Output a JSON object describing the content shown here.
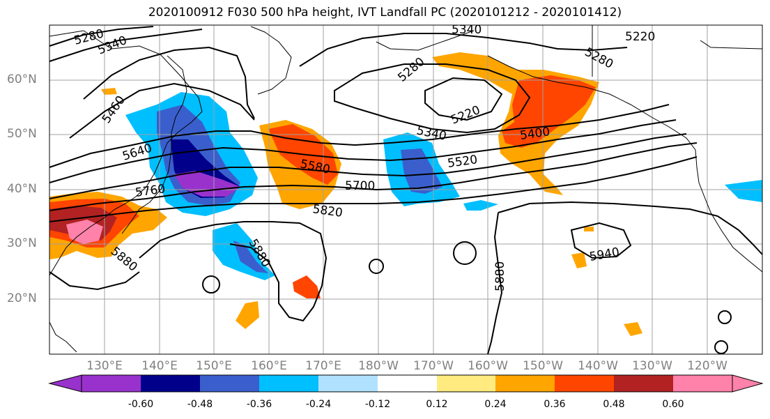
{
  "title": "2020100912 F030 500 hPa height, IVT Landfall PC (2020101212 - 2020101412)",
  "latitude_labels": [
    "60°N",
    "50°N",
    "40°N",
    "30°N",
    "20°N"
  ],
  "longitude_labels": [
    "130°E",
    "140°E",
    "150°E",
    "160°E",
    "170°E",
    "180°W",
    "170°W",
    "160°W",
    "150°W",
    "140°W",
    "130°W",
    "120°W"
  ],
  "contour_labels": [
    "5280",
    "5340",
    "5460",
    "5640",
    "5760",
    "5880",
    "5340",
    "5220",
    "5280",
    "5340",
    "5220",
    "5580",
    "5700",
    "5820",
    "5520",
    "5400",
    "5280",
    "5880",
    "5880",
    "5940"
  ],
  "colorbar": {
    "ticks": [
      "-0.60",
      "-0.48",
      "-0.36",
      "-0.24",
      "-0.12",
      "0.12",
      "0.24",
      "0.36",
      "0.48",
      "0.60"
    ],
    "colors": [
      "#9932cc",
      "#00008b",
      "#3a5fcd",
      "#00bfff",
      "#b0e2ff",
      "#ffffff",
      "#ffeb80",
      "#ffa500",
      "#ff4500",
      "#b22222",
      "#ff82ab"
    ]
  }
}
